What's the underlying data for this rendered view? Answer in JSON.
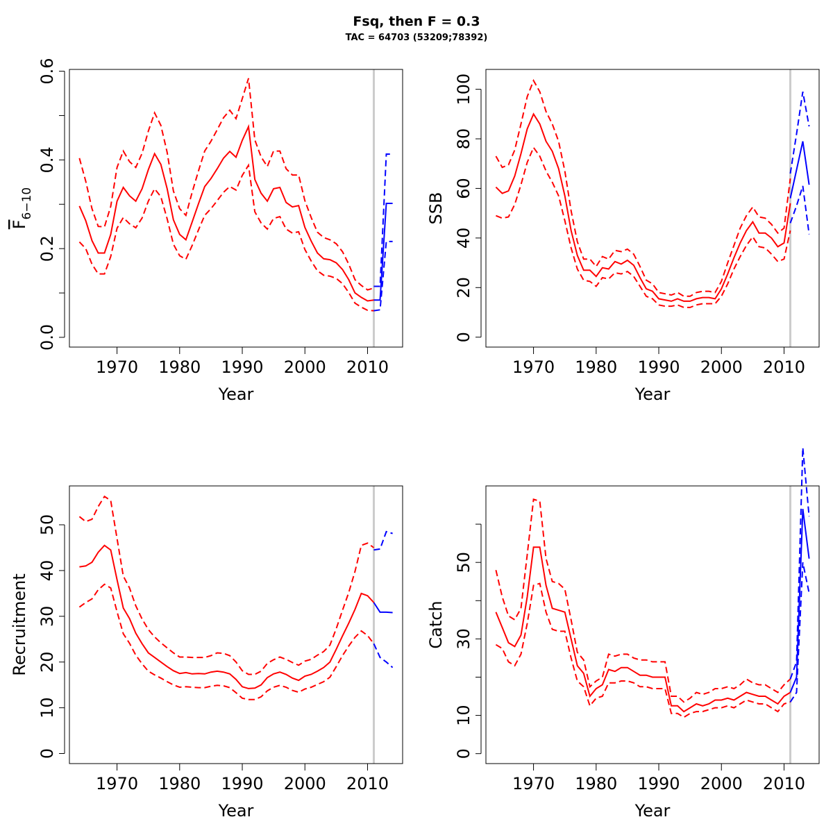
{
  "title": "Fsq, then F = 0.3",
  "subtitle": "TAC = 64703 (53209;78392)",
  "colors": {
    "estimate": "#ff0000",
    "forecast": "#0000ff",
    "divider": "#cccccc",
    "frame": "#000000"
  },
  "chart_data": [
    {
      "type": "line",
      "panel": "top-left",
      "ylabel_main": "F",
      "ylabel_sub": "6−10",
      "ylabel_overline": true,
      "xlabel": "Year",
      "xlim": [
        1962.4,
        2015.6
      ],
      "ylim": [
        -0.022,
        0.604
      ],
      "xticks": [
        1970,
        1980,
        1990,
        2000,
        2010
      ],
      "yticks": [
        0.0,
        0.2,
        0.4,
        0.6
      ],
      "yticklabels": [
        "0.0",
        "0.2",
        "0.4",
        "0.6"
      ],
      "yminor": [
        0.1,
        0.3,
        0.5
      ],
      "divider_x": 2011,
      "x": [
        1964,
        1965,
        1966,
        1967,
        1968,
        1969,
        1970,
        1971,
        1972,
        1973,
        1974,
        1975,
        1976,
        1977,
        1978,
        1979,
        1980,
        1981,
        1982,
        1983,
        1984,
        1985,
        1986,
        1987,
        1988,
        1989,
        1990,
        1991,
        1992,
        1993,
        1994,
        1995,
        1996,
        1997,
        1998,
        1999,
        2000,
        2001,
        2002,
        2003,
        2004,
        2005,
        2006,
        2007,
        2008,
        2009,
        2010,
        2011
      ],
      "series": [
        {
          "role": "estimate",
          "style": "solid",
          "values": [
            0.296,
            0.263,
            0.218,
            0.19,
            0.19,
            0.232,
            0.307,
            0.338,
            0.319,
            0.307,
            0.335,
            0.378,
            0.414,
            0.39,
            0.335,
            0.265,
            0.232,
            0.22,
            0.26,
            0.301,
            0.34,
            0.358,
            0.38,
            0.404,
            0.419,
            0.406,
            0.444,
            0.475,
            0.356,
            0.325,
            0.307,
            0.335,
            0.338,
            0.304,
            0.294,
            0.297,
            0.248,
            0.217,
            0.19,
            0.177,
            0.175,
            0.168,
            0.153,
            0.13,
            0.1,
            0.09,
            0.082,
            0.084
          ]
        },
        {
          "role": "upper",
          "style": "dashed",
          "values": [
            0.404,
            0.352,
            0.29,
            0.25,
            0.249,
            0.295,
            0.383,
            0.42,
            0.396,
            0.383,
            0.415,
            0.465,
            0.506,
            0.478,
            0.417,
            0.33,
            0.29,
            0.275,
            0.327,
            0.375,
            0.42,
            0.442,
            0.468,
            0.495,
            0.512,
            0.493,
            0.538,
            0.584,
            0.445,
            0.407,
            0.385,
            0.42,
            0.42,
            0.38,
            0.366,
            0.366,
            0.308,
            0.27,
            0.237,
            0.225,
            0.22,
            0.211,
            0.193,
            0.165,
            0.13,
            0.117,
            0.107,
            0.111
          ]
        },
        {
          "role": "lower",
          "style": "dashed",
          "values": [
            0.215,
            0.2,
            0.165,
            0.143,
            0.143,
            0.182,
            0.246,
            0.27,
            0.256,
            0.247,
            0.269,
            0.307,
            0.335,
            0.317,
            0.267,
            0.21,
            0.184,
            0.176,
            0.207,
            0.242,
            0.275,
            0.29,
            0.308,
            0.327,
            0.34,
            0.332,
            0.365,
            0.388,
            0.283,
            0.258,
            0.244,
            0.268,
            0.272,
            0.244,
            0.235,
            0.238,
            0.198,
            0.172,
            0.15,
            0.14,
            0.138,
            0.133,
            0.121,
            0.101,
            0.077,
            0.068,
            0.061,
            0.06
          ]
        }
      ],
      "forecast_x": [
        2011,
        2012,
        2013,
        2014
      ],
      "forecast": [
        {
          "role": "estimate",
          "style": "solid",
          "values": [
            0.084,
            0.084,
            0.302,
            0.302
          ]
        },
        {
          "role": "upper",
          "style": "dashed",
          "values": [
            0.115,
            0.115,
            0.413,
            0.413
          ]
        },
        {
          "role": "lower",
          "style": "dashed",
          "values": [
            0.06,
            0.062,
            0.216,
            0.216
          ]
        }
      ]
    },
    {
      "type": "line",
      "panel": "top-right",
      "ylabel": "SSB",
      "xlabel": "Year",
      "xlim": [
        1962.4,
        2015.6
      ],
      "ylim": [
        -4,
        108
      ],
      "xticks": [
        1970,
        1980,
        1990,
        2000,
        2010
      ],
      "yticks": [
        0,
        20,
        40,
        60,
        80,
        100
      ],
      "yticklabels": [
        "0",
        "20",
        "40",
        "60",
        "80",
        "100"
      ],
      "divider_x": 2011,
      "x": [
        1964,
        1965,
        1966,
        1967,
        1968,
        1969,
        1970,
        1971,
        1972,
        1973,
        1974,
        1975,
        1976,
        1977,
        1978,
        1979,
        1980,
        1981,
        1982,
        1983,
        1984,
        1985,
        1986,
        1987,
        1988,
        1989,
        1990,
        1991,
        1992,
        1993,
        1994,
        1995,
        1996,
        1997,
        1998,
        1999,
        2000,
        2001,
        2002,
        2003,
        2004,
        2005,
        2006,
        2007,
        2008,
        2009,
        2010,
        2011
      ],
      "series": [
        {
          "role": "estimate",
          "style": "solid",
          "values": [
            60.5,
            58,
            59,
            65,
            74,
            84,
            90,
            86,
            79,
            75,
            68,
            57,
            43,
            33,
            27,
            27,
            24.5,
            28,
            27.5,
            30.5,
            29.5,
            31,
            29,
            24,
            19.5,
            18.5,
            15.5,
            15,
            14.5,
            15.5,
            14.5,
            14.5,
            15.5,
            16,
            16,
            15.5,
            19.5,
            25.5,
            32,
            38,
            43,
            46.5,
            42,
            42,
            40,
            36.5,
            38,
            54
          ]
        },
        {
          "role": "upper",
          "style": "dashed",
          "values": [
            73,
            68.5,
            69.5,
            75.5,
            86,
            97,
            103.5,
            99,
            91,
            86,
            79,
            67,
            51,
            38.5,
            31.5,
            31.5,
            28.5,
            32.5,
            31.5,
            35,
            34.5,
            35.5,
            33.5,
            28.5,
            23,
            21.5,
            18,
            17.5,
            17,
            18,
            16.5,
            16.5,
            18,
            18.5,
            18.5,
            18,
            22.5,
            30,
            37,
            44,
            49,
            52.5,
            48.5,
            48,
            45.5,
            42,
            44,
            64
          ]
        },
        {
          "role": "lower",
          "style": "dashed",
          "values": [
            49,
            48,
            48.5,
            53.5,
            61.5,
            70.5,
            76.5,
            73,
            67,
            62.5,
            57,
            47,
            36,
            27.5,
            23,
            22.5,
            20.5,
            24,
            23.5,
            26,
            25.5,
            26.5,
            24.5,
            20.5,
            16.5,
            15.5,
            13,
            12.5,
            12.5,
            13,
            12,
            12,
            13,
            13.5,
            13.5,
            13.5,
            16.5,
            21.5,
            27.5,
            32.5,
            37,
            40.5,
            36.5,
            36,
            33.5,
            30.5,
            31.5,
            43
          ]
        }
      ],
      "forecast_x": [
        2011,
        2012,
        2013,
        2014
      ],
      "forecast": [
        {
          "role": "estimate",
          "style": "solid",
          "values": [
            56,
            67.5,
            79,
            61.5
          ]
        },
        {
          "role": "upper",
          "style": "dashed",
          "values": [
            66,
            82,
            99,
            85
          ]
        },
        {
          "role": "lower",
          "style": "dashed",
          "values": [
            46,
            53,
            61,
            41.5
          ]
        }
      ]
    },
    {
      "type": "line",
      "panel": "bottom-left",
      "ylabel": "Recruitment",
      "xlabel": "Year",
      "xlim": [
        1962.4,
        2015.6
      ],
      "ylim": [
        -2.2,
        58.5
      ],
      "xticks": [
        1970,
        1980,
        1990,
        2000,
        2010
      ],
      "yticks": [
        0,
        10,
        20,
        30,
        40,
        50
      ],
      "yticklabels": [
        "0",
        "10",
        "20",
        "30",
        "40",
        "50"
      ],
      "divider_x": 2011,
      "x": [
        1964,
        1965,
        1966,
        1967,
        1968,
        1969,
        1970,
        1971,
        1972,
        1973,
        1974,
        1975,
        1976,
        1977,
        1978,
        1979,
        1980,
        1981,
        1982,
        1983,
        1984,
        1985,
        1986,
        1987,
        1988,
        1989,
        1990,
        1991,
        1992,
        1993,
        1994,
        1995,
        1996,
        1997,
        1998,
        1999,
        2000,
        2001,
        2002,
        2003,
        2004,
        2005,
        2006,
        2007,
        2008,
        2009,
        2010,
        2011
      ],
      "series": [
        {
          "role": "estimate",
          "style": "solid",
          "values": [
            40.8,
            41,
            41.8,
            44,
            45.5,
            44.5,
            38,
            31.8,
            29.5,
            26.3,
            24,
            22,
            21,
            20,
            19,
            18.1,
            17.5,
            17.7,
            17.4,
            17.5,
            17.4,
            17.8,
            18,
            17.8,
            17.4,
            16.2,
            14.6,
            14.2,
            14.3,
            15,
            16.6,
            17.4,
            17.8,
            17.3,
            16.5,
            16,
            16.9,
            17.3,
            18,
            18.8,
            20,
            22.8,
            25.7,
            28.5,
            31.5,
            35,
            34.5,
            33
          ]
        },
        {
          "role": "upper",
          "style": "dashed",
          "values": [
            51.8,
            50.7,
            51.2,
            54,
            56.2,
            55.3,
            47,
            38.8,
            36.2,
            32.3,
            29.4,
            27.1,
            25.5,
            24.2,
            23.1,
            22,
            21.1,
            21.1,
            21,
            21,
            21,
            21.4,
            22,
            21.9,
            21.4,
            20,
            18.1,
            17.3,
            17.3,
            18,
            19.7,
            20.5,
            21.1,
            20.6,
            19.9,
            19.3,
            20.2,
            20.6,
            21.5,
            22.3,
            23.7,
            27.3,
            31.3,
            35.2,
            39.8,
            45.5,
            46,
            45
          ]
        },
        {
          "role": "lower",
          "style": "dashed",
          "values": [
            32,
            33,
            33.8,
            35.8,
            37,
            36.2,
            31,
            26.2,
            24.1,
            21.5,
            19.6,
            18,
            17.2,
            16.5,
            15.7,
            15,
            14.5,
            14.6,
            14.5,
            14.4,
            14.4,
            14.7,
            14.9,
            14.8,
            14.4,
            13.3,
            12.1,
            11.8,
            11.8,
            12.4,
            13.7,
            14.5,
            14.9,
            14.5,
            13.8,
            13.4,
            14.1,
            14.5,
            15.1,
            15.7,
            16.7,
            19,
            21.4,
            23.5,
            25.4,
            26.8,
            25.8,
            24
          ]
        }
      ],
      "forecast_x": [
        2011,
        2012,
        2013,
        2014
      ],
      "forecast": [
        {
          "role": "estimate",
          "style": "solid",
          "values": [
            33,
            30.9,
            30.9,
            30.8
          ]
        },
        {
          "role": "upper",
          "style": "dashed",
          "values": [
            44.5,
            44.7,
            48.5,
            48.1
          ]
        },
        {
          "role": "lower",
          "style": "dashed",
          "values": [
            24,
            21,
            20,
            18.8
          ]
        }
      ]
    },
    {
      "type": "line",
      "panel": "bottom-right",
      "ylabel": "Catch",
      "xlabel": "Year",
      "xlim": [
        1962.4,
        2015.6
      ],
      "ylim": [
        -2.6,
        70
      ],
      "xticks": [
        1970,
        1980,
        1990,
        2000,
        2010
      ],
      "yticks": [
        0,
        10,
        30,
        50
      ],
      "yticklabels": [
        "0",
        "10",
        "30",
        "50"
      ],
      "yminor": [
        20,
        40,
        60
      ],
      "divider_x": 2011,
      "x": [
        1964,
        1965,
        1966,
        1967,
        1968,
        1969,
        1970,
        1971,
        1972,
        1973,
        1974,
        1975,
        1976,
        1977,
        1978,
        1979,
        1980,
        1981,
        1982,
        1983,
        1984,
        1985,
        1986,
        1987,
        1988,
        1989,
        1990,
        1991,
        1992,
        1993,
        1994,
        1995,
        1996,
        1997,
        1998,
        1999,
        2000,
        2001,
        2002,
        2003,
        2004,
        2005,
        2006,
        2007,
        2008,
        2009,
        2010,
        2011
      ],
      "series": [
        {
          "role": "estimate",
          "style": "solid",
          "values": [
            37,
            33,
            29,
            28,
            31,
            41,
            54,
            54,
            44,
            38,
            37.5,
            37,
            30,
            23,
            21,
            15,
            17,
            18,
            22,
            21.5,
            22.5,
            22.5,
            21.5,
            20.5,
            20.5,
            20,
            20,
            20,
            12.5,
            12.5,
            11,
            12,
            13,
            12.5,
            13,
            14,
            14,
            14.5,
            14,
            15,
            16,
            15.5,
            15,
            15,
            14,
            13,
            15,
            16
          ]
        },
        {
          "role": "upper",
          "style": "dashed",
          "values": [
            48,
            41,
            36,
            35,
            38,
            52,
            66.5,
            66,
            51,
            45,
            44.5,
            43,
            35,
            26.5,
            24.5,
            17.5,
            19,
            20,
            26,
            25.5,
            26,
            26,
            25,
            24.5,
            24.5,
            24,
            24,
            24,
            15,
            15,
            13.5,
            14.5,
            16,
            15.5,
            16,
            17,
            17,
            17.5,
            17,
            18,
            19.5,
            18.5,
            18,
            18,
            17,
            16,
            18,
            19.5
          ]
        },
        {
          "role": "lower",
          "style": "dashed",
          "values": [
            28.5,
            27.5,
            24,
            23,
            26,
            34,
            44,
            44.5,
            37,
            32.5,
            32,
            32,
            25,
            19,
            17.5,
            12.5,
            14.5,
            15,
            18.5,
            18.5,
            19,
            19,
            18.5,
            17.5,
            17.5,
            17,
            17,
            17,
            10.5,
            10.5,
            9.5,
            10.5,
            11,
            11,
            11.5,
            12,
            12,
            12.5,
            12,
            13,
            14,
            13.5,
            13,
            13,
            12,
            11,
            13,
            13.5
          ]
        }
      ],
      "forecast_x": [
        2011,
        2012,
        2013,
        2014
      ],
      "forecast": [
        {
          "role": "estimate",
          "style": "solid",
          "values": [
            16,
            20,
            64,
            51
          ]
        },
        {
          "role": "upper",
          "style": "dashed",
          "values": [
            19.5,
            24,
            80,
            62
          ]
        },
        {
          "role": "lower",
          "style": "dashed",
          "values": [
            13.5,
            16,
            50,
            42
          ]
        }
      ]
    }
  ]
}
